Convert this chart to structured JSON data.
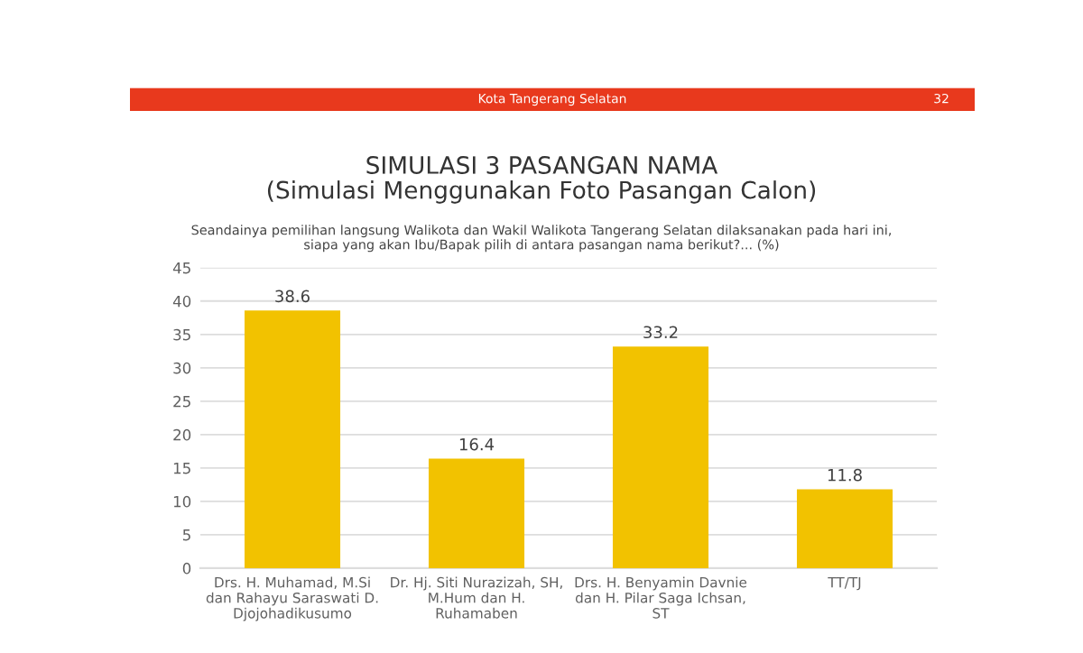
{
  "chart_data": {
    "type": "bar",
    "title": "SIMULASI 3 PASANGAN NAMA\n(Simulasi Menggunakan Foto Pasangan Calon)",
    "subtitle": "Seandainya pemilihan langsung Walikota dan Wakil Walikota Tangerang Selatan dilaksanakan pada hari ini,\nsiapa yang akan Ibu/Bapak pilih di antara pasangan nama berikut?... (%)",
    "annotations": [
      "Kota Tangerang Selatan",
      "32"
    ],
    "categories": [
      "Drs. H. Muhamad, M.Si\ndan Rahayu Saraswati D.\nDjojohadikusumo",
      "Dr. Hj. Siti Nurazizah, SH,\nM.Hum dan H.\nRuhamaben",
      "Drs. H. Benyamin Davnie\ndan H. Pilar Saga Ichsan,\nST",
      "TT/TJ"
    ],
    "values": [
      38.6,
      16.4,
      33.2,
      11.8
    ],
    "color": "#f2c200",
    "ylim": [
      0,
      45
    ],
    "yticks": [
      0,
      5,
      10,
      15,
      20,
      25,
      30,
      35,
      40,
      45
    ],
    "grid": "y",
    "data_labels": true
  }
}
